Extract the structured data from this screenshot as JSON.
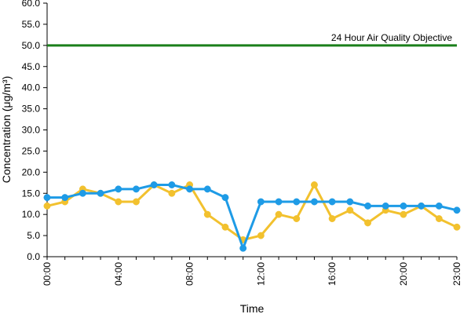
{
  "chart_data": {
    "type": "line",
    "title": "",
    "xlabel": "Time",
    "ylabel": "Concentration (μg/m³)",
    "ylim": [
      0,
      60
    ],
    "y_ticks": [
      "0.0",
      "5.0",
      "10.0",
      "15.0",
      "20.0",
      "25.0",
      "30.0",
      "35.0",
      "40.0",
      "45.0",
      "50.0",
      "55.0",
      "60.0"
    ],
    "x": [
      "00:00",
      "01:00",
      "02:00",
      "03:00",
      "04:00",
      "05:00",
      "06:00",
      "07:00",
      "08:00",
      "09:00",
      "10:00",
      "11:00",
      "12:00",
      "13:00",
      "14:00",
      "15:00",
      "16:00",
      "17:00",
      "18:00",
      "19:00",
      "20:00",
      "21:00",
      "22:00",
      "23:00"
    ],
    "x_tick_labels": [
      "00:00",
      "04:00",
      "08:00",
      "12:00",
      "16:00",
      "20:00",
      "23:00"
    ],
    "grid": false,
    "legend": "none",
    "series": [
      {
        "color": "#f2c12e",
        "values": [
          12,
          13,
          16,
          15,
          13,
          13,
          17,
          15,
          17,
          10,
          7,
          4,
          5,
          10,
          9,
          17,
          9,
          11,
          8,
          11,
          10,
          12,
          9,
          7
        ]
      },
      {
        "color": "#1e9be6",
        "values": [
          14,
          14,
          15,
          15,
          16,
          16,
          17,
          17,
          16,
          16,
          14,
          2,
          13,
          13,
          13,
          13,
          13,
          13,
          12,
          12,
          12,
          12,
          12,
          11
        ]
      }
    ],
    "reference_line": {
      "label": "24 Hour Air Quality Objective",
      "value": 50,
      "color": "#1a7f1a"
    }
  }
}
